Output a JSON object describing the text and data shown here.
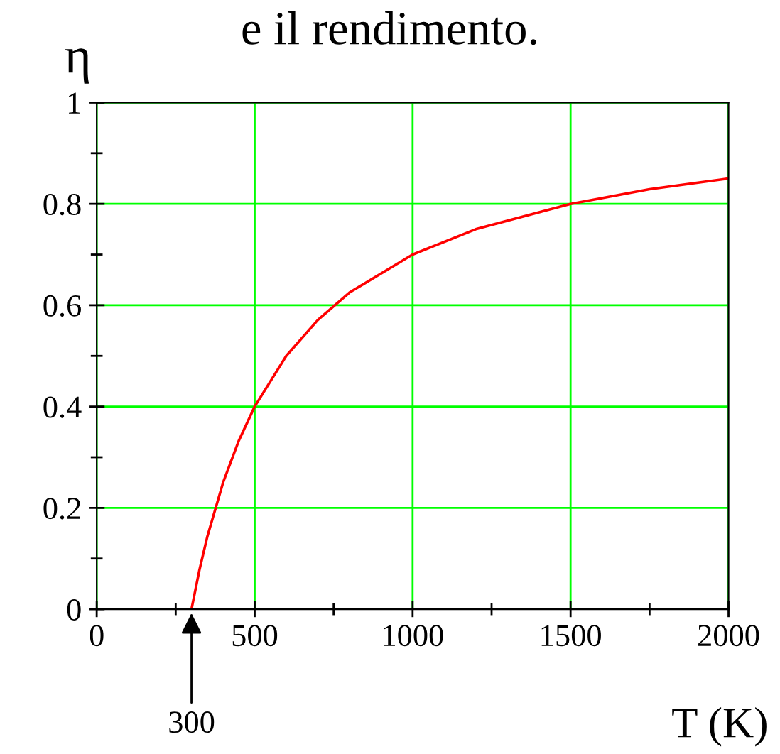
{
  "chart_data": {
    "type": "line",
    "title": "e il rendimento.",
    "xlabel": "T (K)",
    "ylabel": "η",
    "x": [
      300,
      325,
      350,
      400,
      450,
      500,
      600,
      700,
      800,
      1000,
      1200,
      1500,
      1750,
      2000
    ],
    "series": [
      {
        "color": "#ff0000",
        "values": [
          0,
          0.077,
          0.143,
          0.25,
          0.333,
          0.4,
          0.5,
          0.571,
          0.625,
          0.7,
          0.75,
          0.8,
          0.829,
          0.85
        ]
      }
    ],
    "xlim": [
      0,
      2000
    ],
    "ylim": [
      0,
      1
    ],
    "xticks": [
      0,
      500,
      1000,
      1500,
      2000
    ],
    "yticks": [
      0,
      0.2,
      0.4,
      0.6,
      0.8,
      1
    ],
    "grid": true,
    "marker": "none",
    "line_style": "solid",
    "annotations": [
      {
        "text": "300",
        "x": 300,
        "y": 0
      }
    ]
  }
}
